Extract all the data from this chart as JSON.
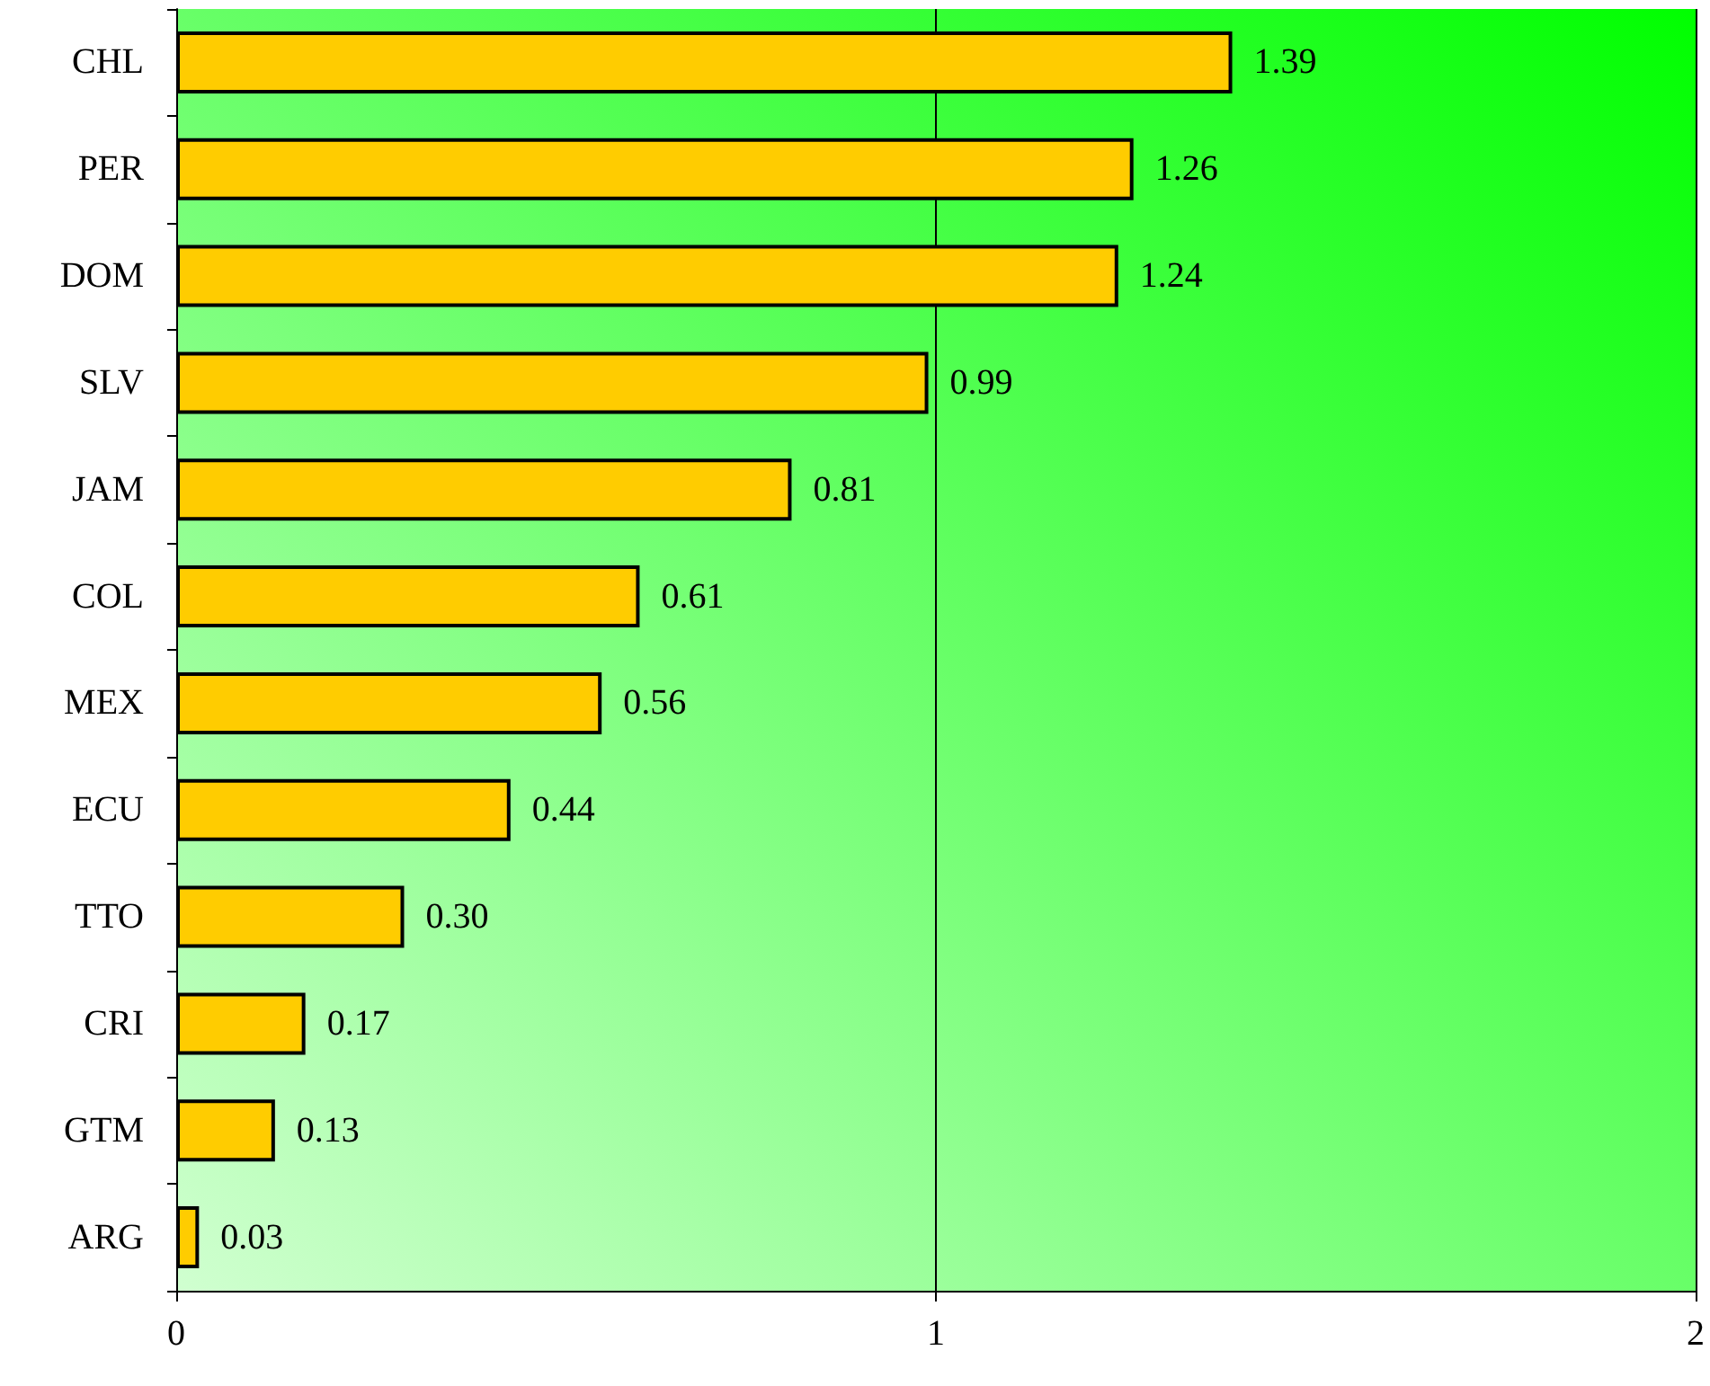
{
  "chart_data": {
    "type": "bar",
    "orientation": "horizontal",
    "categories": [
      "CHL",
      "PER",
      "DOM",
      "SLV",
      "JAM",
      "COL",
      "MEX",
      "ECU",
      "TTO",
      "CRI",
      "GTM",
      "ARG"
    ],
    "values": [
      1.39,
      1.26,
      1.24,
      0.99,
      0.81,
      0.61,
      0.56,
      0.44,
      0.3,
      0.17,
      0.13,
      0.03
    ],
    "value_labels": [
      "1.39",
      "1.26",
      "1.24",
      "0.99",
      "0.81",
      "0.61",
      "0.56",
      "0.44",
      "0.30",
      "0.17",
      "0.13",
      "0.03"
    ],
    "color": "#ffcc00",
    "xlim": [
      0,
      2
    ],
    "xticks": [
      0,
      1,
      2
    ],
    "grid": "x"
  }
}
